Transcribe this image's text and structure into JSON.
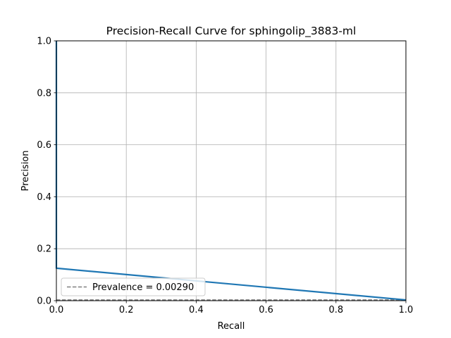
{
  "chart_data": {
    "type": "line",
    "title": "Precision-Recall Curve for sphingolip_3883-ml",
    "xlabel": "Recall",
    "ylabel": "Precision",
    "xlim": [
      0,
      1
    ],
    "ylim": [
      0,
      1
    ],
    "xticks": [
      "0.0",
      "0.2",
      "0.4",
      "0.6",
      "0.8",
      "1.0"
    ],
    "yticks": [
      "0.0",
      "0.2",
      "0.4",
      "0.6",
      "0.8",
      "1.0"
    ],
    "grid": true,
    "legend_position": "lower-left",
    "series": [
      {
        "color": "#1f77b4",
        "style": "solid",
        "x": [
          0.0,
          0.0,
          0.0,
          1.0
        ],
        "y": [
          1.0,
          0.6,
          0.125,
          0.0029
        ]
      }
    ],
    "baseline": {
      "name": "Prevalence = 0.00290",
      "value": 0.0029,
      "color": "#808080",
      "style": "dashed"
    }
  }
}
